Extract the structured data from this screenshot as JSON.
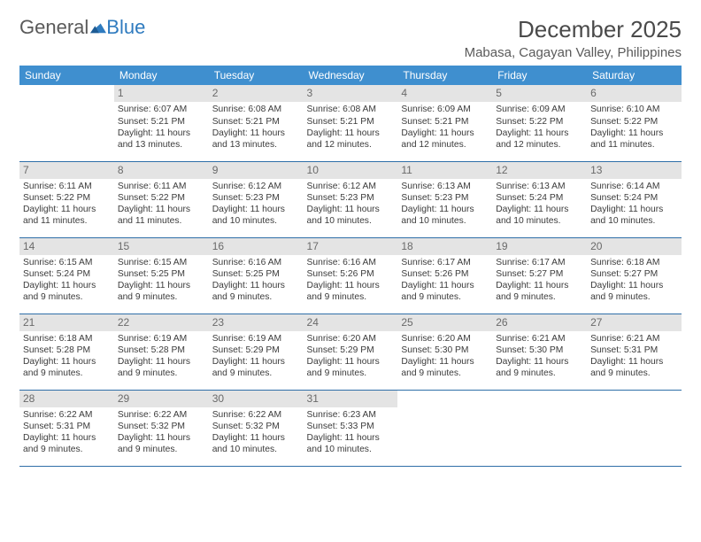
{
  "brand": {
    "part1": "General",
    "part2": "Blue"
  },
  "title": "December 2025",
  "location": "Mabasa, Cagayan Valley, Philippines",
  "colors": {
    "header_bg": "#3f8fcf",
    "header_text": "#ffffff",
    "daynum_bg": "#e4e4e4",
    "daynum_text": "#6a6a6a",
    "body_text": "#3b3b3b",
    "rule": "#2f6fa8",
    "brand_gray": "#5a5a5a",
    "brand_blue": "#2f7bbf"
  },
  "weekdays": [
    "Sunday",
    "Monday",
    "Tuesday",
    "Wednesday",
    "Thursday",
    "Friday",
    "Saturday"
  ],
  "weeks": [
    [
      {
        "n": "",
        "sr": "",
        "ss": "",
        "dl": ""
      },
      {
        "n": "1",
        "sr": "Sunrise: 6:07 AM",
        "ss": "Sunset: 5:21 PM",
        "dl": "Daylight: 11 hours and 13 minutes."
      },
      {
        "n": "2",
        "sr": "Sunrise: 6:08 AM",
        "ss": "Sunset: 5:21 PM",
        "dl": "Daylight: 11 hours and 13 minutes."
      },
      {
        "n": "3",
        "sr": "Sunrise: 6:08 AM",
        "ss": "Sunset: 5:21 PM",
        "dl": "Daylight: 11 hours and 12 minutes."
      },
      {
        "n": "4",
        "sr": "Sunrise: 6:09 AM",
        "ss": "Sunset: 5:21 PM",
        "dl": "Daylight: 11 hours and 12 minutes."
      },
      {
        "n": "5",
        "sr": "Sunrise: 6:09 AM",
        "ss": "Sunset: 5:22 PM",
        "dl": "Daylight: 11 hours and 12 minutes."
      },
      {
        "n": "6",
        "sr": "Sunrise: 6:10 AM",
        "ss": "Sunset: 5:22 PM",
        "dl": "Daylight: 11 hours and 11 minutes."
      }
    ],
    [
      {
        "n": "7",
        "sr": "Sunrise: 6:11 AM",
        "ss": "Sunset: 5:22 PM",
        "dl": "Daylight: 11 hours and 11 minutes."
      },
      {
        "n": "8",
        "sr": "Sunrise: 6:11 AM",
        "ss": "Sunset: 5:22 PM",
        "dl": "Daylight: 11 hours and 11 minutes."
      },
      {
        "n": "9",
        "sr": "Sunrise: 6:12 AM",
        "ss": "Sunset: 5:23 PM",
        "dl": "Daylight: 11 hours and 10 minutes."
      },
      {
        "n": "10",
        "sr": "Sunrise: 6:12 AM",
        "ss": "Sunset: 5:23 PM",
        "dl": "Daylight: 11 hours and 10 minutes."
      },
      {
        "n": "11",
        "sr": "Sunrise: 6:13 AM",
        "ss": "Sunset: 5:23 PM",
        "dl": "Daylight: 11 hours and 10 minutes."
      },
      {
        "n": "12",
        "sr": "Sunrise: 6:13 AM",
        "ss": "Sunset: 5:24 PM",
        "dl": "Daylight: 11 hours and 10 minutes."
      },
      {
        "n": "13",
        "sr": "Sunrise: 6:14 AM",
        "ss": "Sunset: 5:24 PM",
        "dl": "Daylight: 11 hours and 10 minutes."
      }
    ],
    [
      {
        "n": "14",
        "sr": "Sunrise: 6:15 AM",
        "ss": "Sunset: 5:24 PM",
        "dl": "Daylight: 11 hours and 9 minutes."
      },
      {
        "n": "15",
        "sr": "Sunrise: 6:15 AM",
        "ss": "Sunset: 5:25 PM",
        "dl": "Daylight: 11 hours and 9 minutes."
      },
      {
        "n": "16",
        "sr": "Sunrise: 6:16 AM",
        "ss": "Sunset: 5:25 PM",
        "dl": "Daylight: 11 hours and 9 minutes."
      },
      {
        "n": "17",
        "sr": "Sunrise: 6:16 AM",
        "ss": "Sunset: 5:26 PM",
        "dl": "Daylight: 11 hours and 9 minutes."
      },
      {
        "n": "18",
        "sr": "Sunrise: 6:17 AM",
        "ss": "Sunset: 5:26 PM",
        "dl": "Daylight: 11 hours and 9 minutes."
      },
      {
        "n": "19",
        "sr": "Sunrise: 6:17 AM",
        "ss": "Sunset: 5:27 PM",
        "dl": "Daylight: 11 hours and 9 minutes."
      },
      {
        "n": "20",
        "sr": "Sunrise: 6:18 AM",
        "ss": "Sunset: 5:27 PM",
        "dl": "Daylight: 11 hours and 9 minutes."
      }
    ],
    [
      {
        "n": "21",
        "sr": "Sunrise: 6:18 AM",
        "ss": "Sunset: 5:28 PM",
        "dl": "Daylight: 11 hours and 9 minutes."
      },
      {
        "n": "22",
        "sr": "Sunrise: 6:19 AM",
        "ss": "Sunset: 5:28 PM",
        "dl": "Daylight: 11 hours and 9 minutes."
      },
      {
        "n": "23",
        "sr": "Sunrise: 6:19 AM",
        "ss": "Sunset: 5:29 PM",
        "dl": "Daylight: 11 hours and 9 minutes."
      },
      {
        "n": "24",
        "sr": "Sunrise: 6:20 AM",
        "ss": "Sunset: 5:29 PM",
        "dl": "Daylight: 11 hours and 9 minutes."
      },
      {
        "n": "25",
        "sr": "Sunrise: 6:20 AM",
        "ss": "Sunset: 5:30 PM",
        "dl": "Daylight: 11 hours and 9 minutes."
      },
      {
        "n": "26",
        "sr": "Sunrise: 6:21 AM",
        "ss": "Sunset: 5:30 PM",
        "dl": "Daylight: 11 hours and 9 minutes."
      },
      {
        "n": "27",
        "sr": "Sunrise: 6:21 AM",
        "ss": "Sunset: 5:31 PM",
        "dl": "Daylight: 11 hours and 9 minutes."
      }
    ],
    [
      {
        "n": "28",
        "sr": "Sunrise: 6:22 AM",
        "ss": "Sunset: 5:31 PM",
        "dl": "Daylight: 11 hours and 9 minutes."
      },
      {
        "n": "29",
        "sr": "Sunrise: 6:22 AM",
        "ss": "Sunset: 5:32 PM",
        "dl": "Daylight: 11 hours and 9 minutes."
      },
      {
        "n": "30",
        "sr": "Sunrise: 6:22 AM",
        "ss": "Sunset: 5:32 PM",
        "dl": "Daylight: 11 hours and 10 minutes."
      },
      {
        "n": "31",
        "sr": "Sunrise: 6:23 AM",
        "ss": "Sunset: 5:33 PM",
        "dl": "Daylight: 11 hours and 10 minutes."
      },
      {
        "n": "",
        "sr": "",
        "ss": "",
        "dl": ""
      },
      {
        "n": "",
        "sr": "",
        "ss": "",
        "dl": ""
      },
      {
        "n": "",
        "sr": "",
        "ss": "",
        "dl": ""
      }
    ]
  ]
}
